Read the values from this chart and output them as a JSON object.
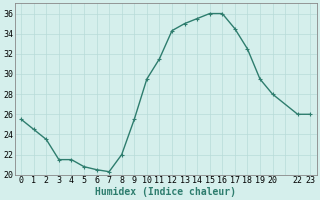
{
  "x": [
    0,
    1,
    2,
    3,
    4,
    5,
    6,
    7,
    8,
    9,
    10,
    11,
    12,
    13,
    14,
    15,
    16,
    17,
    18,
    19,
    20,
    22,
    23
  ],
  "y": [
    25.5,
    24.5,
    23.5,
    21.5,
    21.5,
    20.8,
    20.5,
    20.3,
    22.0,
    25.5,
    29.5,
    31.5,
    34.3,
    35.0,
    35.5,
    36.0,
    36.0,
    34.5,
    32.5,
    29.5,
    28.0,
    26.0,
    26.0
  ],
  "line_color": "#2e7d6e",
  "marker": "+",
  "marker_size": 3,
  "line_width": 1.0,
  "bg_color": "#d5efec",
  "grid_color": "#b8dbd8",
  "xlabel": "Humidex (Indice chaleur)",
  "xlabel_fontsize": 7,
  "tick_fontsize": 6,
  "ylim": [
    20,
    37
  ],
  "yticks": [
    20,
    22,
    24,
    26,
    28,
    30,
    32,
    34,
    36
  ],
  "xtick_labels": [
    "0",
    "1",
    "2",
    "3",
    "4",
    "5",
    "6",
    "7",
    "8",
    "9",
    "10",
    "11",
    "12",
    "13",
    "14",
    "15",
    "16",
    "17",
    "18",
    "19",
    "20",
    "",
    "22",
    "23"
  ],
  "xtick_positions": [
    0,
    1,
    2,
    3,
    4,
    5,
    6,
    7,
    8,
    9,
    10,
    11,
    12,
    13,
    14,
    15,
    16,
    17,
    18,
    19,
    20,
    21,
    22,
    23
  ],
  "xlim": [
    -0.5,
    23.5
  ]
}
